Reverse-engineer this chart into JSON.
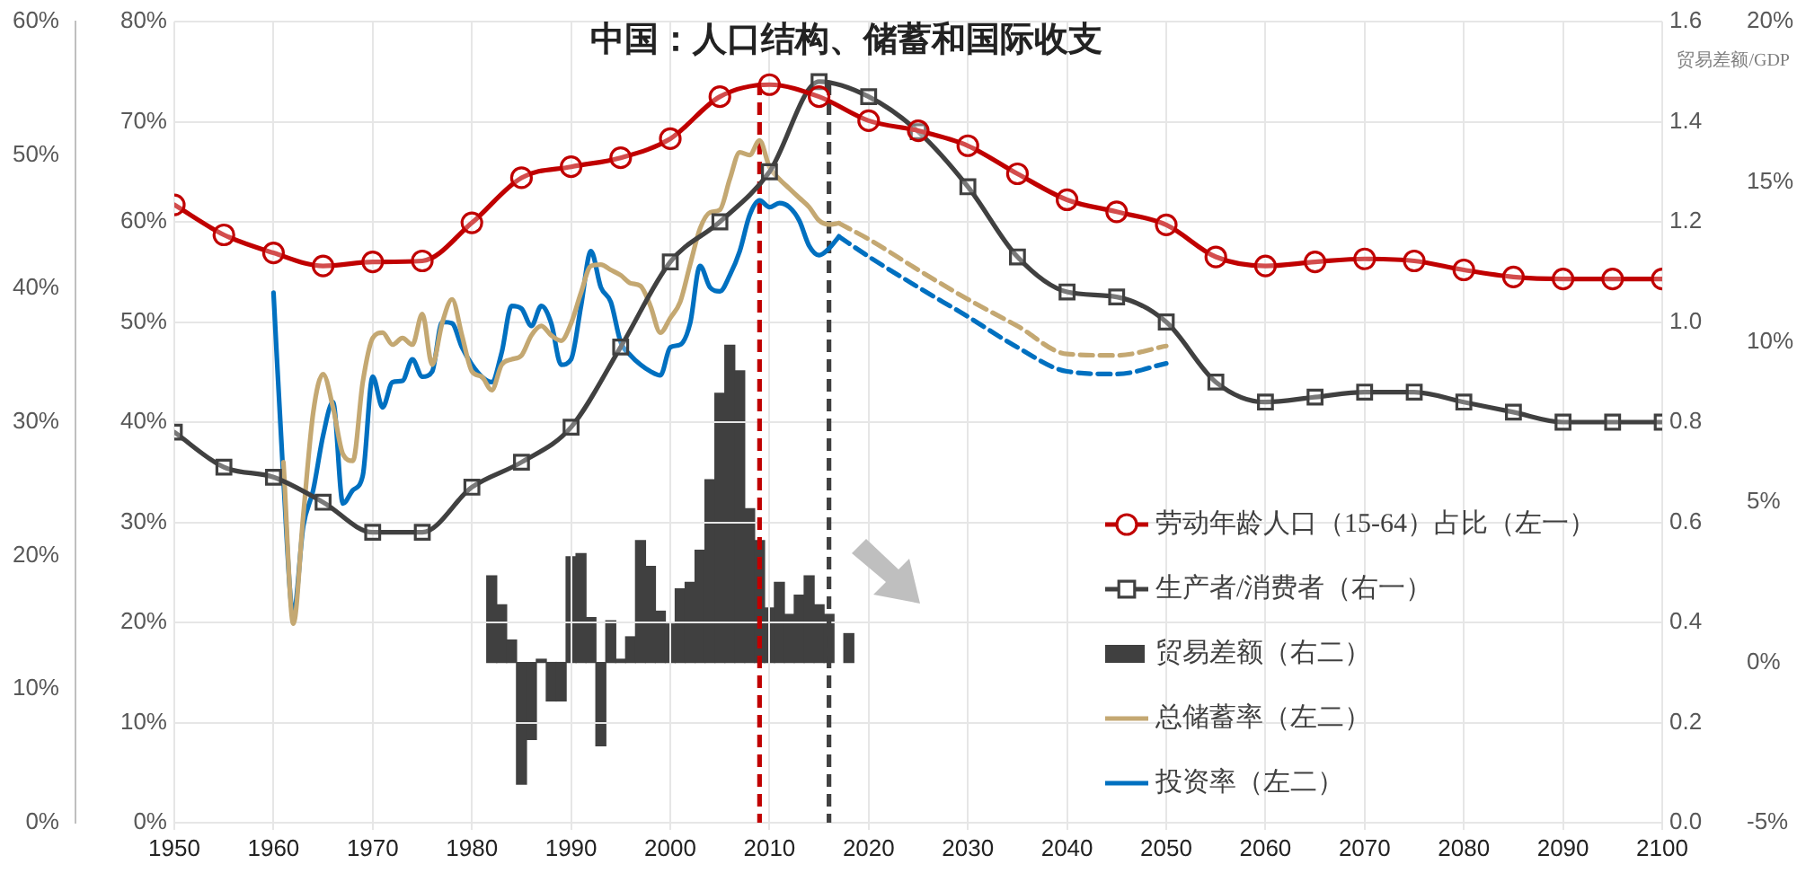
{
  "chart_data": [
    {
      "type": "line",
      "title": "中国：人口结构、储蓄和国际收支",
      "xlim": [
        1950,
        2100
      ],
      "xticks": [
        1950,
        1960,
        1970,
        1980,
        1990,
        2000,
        2010,
        2020,
        2030,
        2040,
        2050,
        2060,
        2070,
        2080,
        2090,
        2100
      ],
      "ylim": [
        0,
        80
      ],
      "yticks": [
        {
          "value": 0,
          "label": "0%"
        },
        {
          "value": 10,
          "label": "10%"
        },
        {
          "value": 20,
          "label": "20%"
        },
        {
          "value": 30,
          "label": "30%"
        },
        {
          "value": 40,
          "label": "40%"
        },
        {
          "value": 50,
          "label": "50%"
        },
        {
          "value": 60,
          "label": "60%"
        },
        {
          "value": 70,
          "label": "70%"
        },
        {
          "value": 80,
          "label": "80%"
        }
      ],
      "y2lim": [
        0,
        1.6
      ],
      "y2ticks": [
        {
          "value": 0,
          "label": "0.0"
        },
        0.2,
        0.4,
        0.6,
        0.8,
        {
          "value": 1,
          "label": "1.0"
        },
        1.2,
        1.4,
        1.6
      ],
      "y3lim": [
        0,
        60
      ],
      "y3ticks": [
        {
          "value": 0,
          "label": "0%"
        },
        {
          "value": 10,
          "label": "10%"
        },
        {
          "value": 20,
          "label": "20%"
        },
        {
          "value": 30,
          "label": "30%"
        },
        {
          "value": 40,
          "label": "40%"
        },
        {
          "value": 50,
          "label": "50%"
        },
        {
          "value": 60,
          "label": "60%"
        }
      ],
      "grid": true,
      "legend": "bottom right",
      "ref_lines": [
        {
          "axis": "x",
          "value": 2009,
          "color": "#c00000",
          "line_style": "dashed"
        },
        {
          "axis": "x",
          "value": 2016,
          "color": "#404040",
          "line_style": "dashed"
        }
      ],
      "series": [
        {
          "name": "劳动年龄人口（15-64）占比（左一）",
          "color": "#c00000",
          "marker": "circle",
          "x": [
            1950,
            1955,
            1960,
            1965,
            1970,
            1975,
            1980,
            1985,
            1990,
            1995,
            2000,
            2005,
            2010,
            2015,
            2020,
            2025,
            2030,
            2035,
            2040,
            2045,
            2050,
            2055,
            2060,
            2065,
            2070,
            2075,
            2080,
            2085,
            2090,
            2095,
            2100
          ],
          "values": [
            61.7,
            58.7,
            56.9,
            55.6,
            56.0,
            56.1,
            59.9,
            64.4,
            65.5,
            66.4,
            68.3,
            72.5,
            73.7,
            72.5,
            70.1,
            69.1,
            67.6,
            64.8,
            62.2,
            61.0,
            59.7,
            56.5,
            55.6,
            56.0,
            56.3,
            56.1,
            55.2,
            54.5,
            54.3,
            54.3,
            54.3
          ]
        },
        {
          "name": "生产者/消费者（右一）",
          "color": "#404040",
          "axis": "y2",
          "marker": "square",
          "x": [
            1950,
            1955,
            1960,
            1965,
            1970,
            1975,
            1980,
            1985,
            1990,
            1995,
            2000,
            2005,
            2010,
            2015,
            2020,
            2025,
            2030,
            2035,
            2040,
            2045,
            2050,
            2055,
            2060,
            2065,
            2070,
            2075,
            2080,
            2085,
            2090,
            2095,
            2100
          ],
          "values": [
            0.78,
            0.71,
            0.69,
            0.64,
            0.58,
            0.58,
            0.67,
            0.72,
            0.79,
            0.95,
            1.12,
            1.2,
            1.3,
            1.48,
            1.45,
            1.38,
            1.27,
            1.13,
            1.06,
            1.05,
            1.0,
            0.88,
            0.84,
            0.85,
            0.86,
            0.86,
            0.84,
            0.82,
            0.8,
            0.8,
            0.8
          ]
        },
        {
          "name": "总储蓄率（左二）",
          "color": "#c4a872",
          "axis": "y3",
          "x": [
            1961,
            1962,
            1963,
            1964,
            1965,
            1966,
            1967,
            1968,
            1969,
            1970,
            1971,
            1972,
            1973,
            1974,
            1975,
            1976,
            1977,
            1978,
            1979,
            1980,
            1981,
            1982,
            1983,
            1984,
            1985,
            1986,
            1987,
            1988,
            1989,
            1990,
            1991,
            1992,
            1993,
            1994,
            1995,
            1996,
            1997,
            1998,
            1999,
            2000,
            2001,
            2002,
            2003,
            2004,
            2005,
            2006,
            2007,
            2008,
            2009,
            2010,
            2011,
            2012,
            2013,
            2014,
            2015,
            2016,
            2017
          ],
          "values": [
            27.0,
            14.9,
            23.0,
            30.7,
            33.6,
            31.1,
            27.6,
            27.1,
            33.0,
            36.3,
            36.7,
            35.8,
            36.3,
            35.8,
            38.1,
            34.3,
            37.4,
            39.2,
            36.5,
            33.8,
            33.4,
            32.4,
            34.3,
            34.7,
            35.0,
            36.5,
            37.2,
            36.5,
            36.1,
            37.4,
            39.7,
            41.7,
            41.8,
            41.4,
            41.0,
            40.4,
            40.2,
            38.7,
            36.7,
            37.8,
            39.0,
            41.8,
            44.5,
            45.7,
            45.9,
            48.2,
            50.2,
            50.0,
            51.1,
            49.1,
            48.2,
            47.5,
            46.8,
            46.1,
            45.1,
            44.8,
            44.9
          ]
        },
        {
          "name": "投资率（左二）",
          "color": "#0070c0",
          "axis": "y3",
          "x": [
            1960,
            1961,
            1962,
            1963,
            1964,
            1965,
            1966,
            1967,
            1968,
            1969,
            1970,
            1971,
            1972,
            1973,
            1974,
            1975,
            1976,
            1977,
            1978,
            1979,
            1980,
            1981,
            1982,
            1983,
            1984,
            1985,
            1986,
            1987,
            1988,
            1989,
            1990,
            1991,
            1992,
            1993,
            1994,
            1995,
            1996,
            1997,
            1998,
            1999,
            2000,
            2001,
            2002,
            2003,
            2004,
            2005,
            2006,
            2007,
            2008,
            2009,
            2010,
            2011,
            2012,
            2013,
            2014,
            2015,
            2016,
            2017
          ],
          "values": [
            39.7,
            25.7,
            15.6,
            22.2,
            24.9,
            29.0,
            31.5,
            23.9,
            24.9,
            26.0,
            33.4,
            31.1,
            33.0,
            33.1,
            34.7,
            33.4,
            33.8,
            37.5,
            37.4,
            35.6,
            34.3,
            33.4,
            33.0,
            35.2,
            38.7,
            38.5,
            37.2,
            38.7,
            37.4,
            34.3,
            34.7,
            38.7,
            42.8,
            40.1,
            39.0,
            36.0,
            35.0,
            34.3,
            33.8,
            33.5,
            35.6,
            35.8,
            37.4,
            41.7,
            40.1,
            39.8,
            41.0,
            42.8,
            45.5,
            46.6,
            46.1,
            46.4,
            46.1,
            45.1,
            43.2,
            42.5,
            43.0,
            43.9
          ]
        },
        {
          "color": "#c4a872",
          "axis": "y3",
          "line_style": "dashed",
          "x": [
            2017,
            2020,
            2025,
            2030,
            2035,
            2040,
            2045,
            2050
          ],
          "values": [
            44.9,
            43.7,
            41.4,
            39.2,
            37.2,
            35.1,
            35.0,
            35.7
          ]
        },
        {
          "color": "#0070c0",
          "axis": "y3",
          "line_style": "dashed",
          "x": [
            2017,
            2020,
            2025,
            2030,
            2035,
            2040,
            2045,
            2050
          ],
          "values": [
            43.9,
            42.4,
            40.1,
            37.9,
            35.6,
            33.8,
            33.6,
            34.4
          ]
        }
      ]
    },
    {
      "type": "bar",
      "ylabel": "贸易差额/GDP",
      "xlim": [
        1950,
        2100
      ],
      "ylim": [
        -5,
        20
      ],
      "yticks": [
        {
          "value": -5,
          "label": "-5%"
        },
        {
          "value": 0,
          "label": "0%"
        },
        {
          "value": 5,
          "label": "5%"
        },
        {
          "value": 10,
          "label": "10%"
        },
        {
          "value": 15,
          "label": "15%"
        },
        {
          "value": 20,
          "label": "20%"
        }
      ],
      "tick_labels": "y",
      "legend": "bottom right",
      "series": [
        {
          "name": "贸易差额（右二）",
          "color": "#404040",
          "x": [
            1982,
            1983,
            1984,
            1985,
            1986,
            1987,
            1988,
            1989,
            1990,
            1991,
            1992,
            1993,
            1994,
            1995,
            1996,
            1997,
            1998,
            1999,
            2000,
            2001,
            2002,
            2003,
            2004,
            2005,
            2006,
            2007,
            2008,
            2009,
            2010,
            2011,
            2012,
            2013,
            2014,
            2015,
            2016,
            2017,
            2018
          ],
          "values": [
            2.7,
            1.8,
            0.7,
            -3.8,
            -2.4,
            0.1,
            -1.2,
            -1.2,
            3.3,
            3.4,
            1.4,
            -2.6,
            1.3,
            0.1,
            0.8,
            3.8,
            3.0,
            1.6,
            1.2,
            2.3,
            2.5,
            3.5,
            5.7,
            8.4,
            9.9,
            9.1,
            4.8,
            3.8,
            1.7,
            2.5,
            1.5,
            2.1,
            2.7,
            1.8,
            1.5,
            null,
            0.9
          ]
        }
      ]
    }
  ]
}
